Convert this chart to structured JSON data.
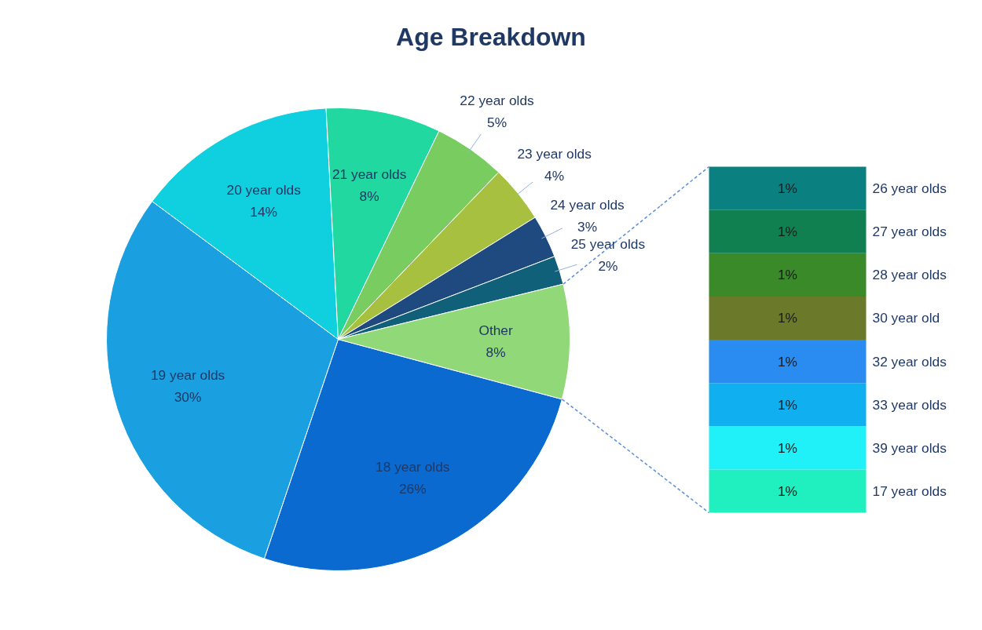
{
  "chart_data": [
    {
      "type": "pie",
      "title": "Age Breakdown",
      "categories": [
        "18 year olds",
        "19 year olds",
        "20 year olds",
        "21 year olds",
        "22 year olds",
        "23 year olds",
        "24 year olds",
        "25 year olds",
        "Other"
      ],
      "values": [
        26,
        30,
        14,
        8,
        5,
        4,
        3,
        2,
        8
      ],
      "value_labels": [
        "26%",
        "30%",
        "14%",
        "8%",
        "5%",
        "4%",
        "3%",
        "2%",
        "8%"
      ],
      "colors": [
        "#0a6ad0",
        "#1aa0e0",
        "#10d0e0",
        "#20d8a0",
        "#78cc60",
        "#a8c040",
        "#1e4a80",
        "#10607a",
        "#90d878"
      ]
    },
    {
      "type": "bar",
      "stacked": true,
      "categories": [
        null
      ],
      "tick_labels": false,
      "series": [
        {
          "name": "17 year olds",
          "color": "#20f0c0",
          "values": [
            1
          ],
          "value_labels": [
            "1%"
          ]
        },
        {
          "name": "39 year olds",
          "color": "#20f0f8",
          "values": [
            1
          ],
          "value_labels": [
            "1%"
          ]
        },
        {
          "name": "33 year olds",
          "color": "#10b0f0",
          "values": [
            1
          ],
          "value_labels": [
            "1%"
          ]
        },
        {
          "name": "32 year olds",
          "color": "#2a8cf0",
          "values": [
            1
          ],
          "value_labels": [
            "1%"
          ]
        },
        {
          "name": "30 year old",
          "color": "#6a7a2a",
          "values": [
            1
          ],
          "value_labels": [
            "1%"
          ]
        },
        {
          "name": "28 year olds",
          "color": "#3a8a2a",
          "values": [
            1
          ],
          "value_labels": [
            "1%"
          ]
        },
        {
          "name": "27 year olds",
          "color": "#108050",
          "values": [
            1
          ],
          "value_labels": [
            "1%"
          ]
        },
        {
          "name": "26 year olds",
          "color": "#0a8080",
          "values": [
            1
          ],
          "value_labels": [
            "1%"
          ]
        }
      ]
    }
  ]
}
